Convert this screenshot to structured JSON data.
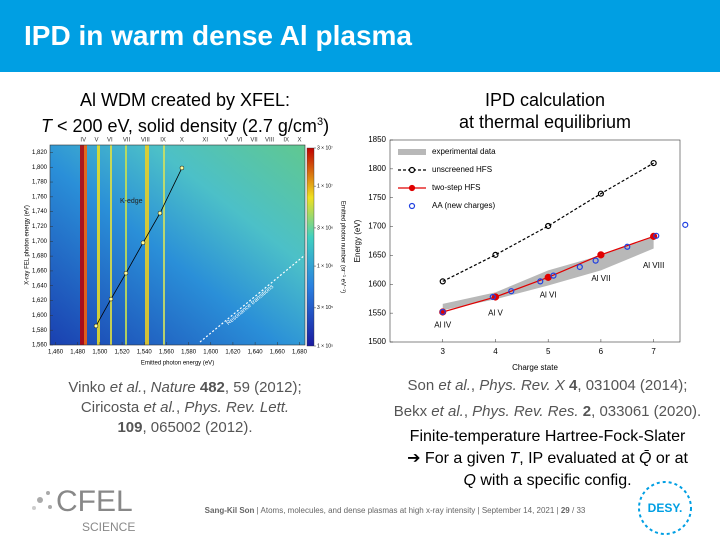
{
  "header": {
    "title": "IPD in warm dense Al plasma"
  },
  "left_heading": [
    [
      {
        "text": "Al WDM created by XFEL:"
      }
    ],
    [
      {
        "text": "T",
        "italic": true
      },
      {
        "text": " < 200 eV, solid density (2.7 g/cm"
      },
      {
        "text": "3",
        "sup": true
      },
      {
        "text": ")"
      }
    ]
  ],
  "right_heading": [
    [
      {
        "text": "IPD calculation"
      }
    ],
    [
      {
        "text": "at thermal equilibrium"
      }
    ]
  ],
  "left_refs": [
    [
      {
        "text": "Vinko"
      },
      {
        "text": " et al.",
        "italic": true
      },
      {
        "text": ", "
      },
      {
        "text": "Nature",
        "italic": true
      },
      {
        "text": " 482",
        "bold": true
      },
      {
        "text": ", 59 (2012);"
      }
    ],
    [
      {
        "text": "Ciricosta"
      },
      {
        "text": " et al.",
        "italic": true
      },
      {
        "text": ", "
      },
      {
        "text": "Phys. Rev. Lett.",
        "italic": true
      }
    ],
    [
      {
        "text": "109",
        "bold": true
      },
      {
        "text": ", 065002 (2012)."
      }
    ]
  ],
  "right_refs": [
    [
      {
        "text": "Son"
      },
      {
        "text": " et al.",
        "italic": true
      },
      {
        "text": ", "
      },
      {
        "text": "Phys. Rev. X",
        "italic": true
      },
      {
        "text": " 4",
        "bold": true
      },
      {
        "text": ", 031004 (2014);"
      }
    ],
    [
      {
        "text": "Bekx"
      },
      {
        "text": " et al.",
        "italic": true
      },
      {
        "text": ", "
      },
      {
        "text": "Phys. Rev. Res.",
        "italic": true
      },
      {
        "text": " 2",
        "bold": true
      },
      {
        "text": ", 033061 (2020)."
      }
    ]
  ],
  "summary": [
    [
      {
        "text": "Finite-temperature Hartree-Fock-Slater"
      }
    ],
    [
      {
        "text": "➔ For a given "
      },
      {
        "text": "T",
        "italic": true
      },
      {
        "text": ", IP evaluated at "
      },
      {
        "text": "Q̄",
        "italic": true
      },
      {
        "text": " or at"
      }
    ],
    [
      {
        "text": "Q",
        "italic": true
      },
      {
        "text": " with a specific config."
      }
    ]
  ],
  "footer": {
    "author": "Sang-Kil Son",
    "text": "| Atoms, molecules, and dense plasmas at high x-ray intensity | September 14, 2021 |",
    "page": "29",
    "total": "/ 33"
  },
  "logos": {
    "cfel": "CFEL",
    "cfel_sub": "SCIENCE",
    "desy": "DESY."
  },
  "chart_data": [
    {
      "type": "heatmap",
      "xlabel": "Emitted photon energy (eV)",
      "ylabel": "X-ray FEL photon energy (eV)",
      "colorbar_label": "Emitted photon number (sr⁻¹ eV⁻¹)",
      "xlim": [
        1455,
        1685
      ],
      "ylim": [
        1560,
        1830
      ],
      "xticks": [
        {
          "value": 1460,
          "label": "1,460"
        },
        {
          "value": 1480,
          "label": "1,480"
        },
        {
          "value": 1500,
          "label": "1,500"
        },
        {
          "value": 1520,
          "label": "1,520"
        },
        {
          "value": 1540,
          "label": "1,540"
        },
        {
          "value": 1560,
          "label": "1,560"
        },
        {
          "value": 1580,
          "label": "1,580"
        },
        {
          "value": 1600,
          "label": "1,600"
        },
        {
          "value": 1620,
          "label": "1,620"
        },
        {
          "value": 1640,
          "label": "1,640"
        },
        {
          "value": 1660,
          "label": "1,660"
        },
        {
          "value": 1680,
          "label": "1,680"
        }
      ],
      "yticks": [
        {
          "value": 1560,
          "label": "1,560"
        },
        {
          "value": 1580,
          "label": "1,580"
        },
        {
          "value": 1600,
          "label": "1,600"
        },
        {
          "value": 1620,
          "label": "1,620"
        },
        {
          "value": 1640,
          "label": "1,640"
        },
        {
          "value": 1660,
          "label": "1,660"
        },
        {
          "value": 1680,
          "label": "1,680"
        },
        {
          "value": 1700,
          "label": "1,700"
        },
        {
          "value": 1720,
          "label": "1,720"
        },
        {
          "value": 1740,
          "label": "1,740"
        },
        {
          "value": 1760,
          "label": "1,760"
        },
        {
          "value": 1780,
          "label": "1,780"
        },
        {
          "value": 1800,
          "label": "1,800"
        },
        {
          "value": 1820,
          "label": "1,820"
        }
      ],
      "clim": [
        100000,
        30000000
      ],
      "clog": true,
      "cticks": [
        {
          "value": 100000,
          "label": "1 × 10⁵"
        },
        {
          "value": 300000,
          "label": "3 × 10⁵"
        },
        {
          "value": 1000000,
          "label": "1 × 10⁶"
        },
        {
          "value": 3000000,
          "label": "3 × 10⁶"
        },
        {
          "value": 10000000,
          "label": "1 × 10⁷"
        },
        {
          "value": 30000000,
          "label": "3 × 10⁷"
        }
      ],
      "top_labels": {
        "labels": [
          "IV",
          "V",
          "VI",
          "VII",
          "VIII",
          "IX",
          "X",
          "XI",
          "V",
          "VI",
          "VII",
          "VIII",
          "IX",
          "X"
        ],
        "x": [
          1485,
          1497,
          1509,
          1524,
          1541,
          1557,
          1574,
          1595,
          1614,
          1626,
          1639,
          1653,
          1668,
          1680
        ]
      },
      "kedge": {
        "name": "K-edge",
        "x": [
          1496.5,
          1510,
          1523.5,
          1538.9,
          1554.2,
          1574
        ],
        "y": [
          1585.7,
          1622,
          1657,
          1698,
          1738,
          1799
        ]
      },
      "annotation": "Resonance transitions"
    },
    {
      "type": "line",
      "xlabel": "Charge state",
      "ylabel": "Energy (eV)",
      "xlim": [
        2,
        7.5
      ],
      "ylim": [
        1500,
        1850
      ],
      "xticks": [
        3,
        4,
        5,
        6,
        7
      ],
      "yticks": [
        1500,
        1550,
        1600,
        1650,
        1700,
        1750,
        1800,
        1850
      ],
      "legend": "upper left",
      "band": {
        "name": "experimental data",
        "color": "#b8b8b8",
        "x": [
          3,
          4,
          5,
          6,
          7
        ],
        "lower": [
          1555,
          1574,
          1598,
          1624,
          1662
        ],
        "upper": [
          1566,
          1586,
          1624,
          1650,
          1682
        ]
      },
      "series": [
        {
          "name": "unscreened HFS",
          "color": "#000000",
          "style": "dotted",
          "x": [
            3,
            4,
            5,
            6,
            7
          ],
          "values": [
            1605,
            1651,
            1701,
            1757,
            1810
          ]
        },
        {
          "name": "two-step HFS",
          "color": "#e00000",
          "style": "solid",
          "x": [
            3,
            4,
            5,
            6,
            7
          ],
          "values": [
            1552,
            1578,
            1612,
            1651,
            1683
          ]
        },
        {
          "name": "AA (new charges)",
          "color": "#2040e0",
          "style": "none",
          "x": [
            3,
            3.95,
            4.3,
            4.85,
            5.1,
            5.6,
            5.9,
            6.5,
            7.05,
            7.6
          ],
          "values": [
            1552,
            1578,
            1588,
            1605,
            1615,
            1630,
            1641,
            1665,
            1684,
            1703
          ]
        }
      ],
      "annotations": [
        {
          "text": "Al IV",
          "x": 3,
          "y": 1529
        },
        {
          "text": "Al V",
          "x": 4,
          "y": 1550
        },
        {
          "text": "Al VI",
          "x": 5,
          "y": 1581
        },
        {
          "text": "Al VII",
          "x": 6,
          "y": 1609
        },
        {
          "text": "Al VIII",
          "x": 7,
          "y": 1632
        }
      ]
    }
  ]
}
